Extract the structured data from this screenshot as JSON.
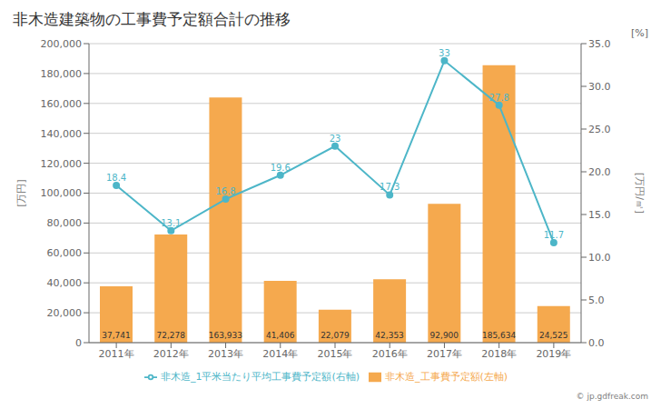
{
  "chart_data": {
    "type": "bar",
    "title": "非木造建築物の工事費予定額合計の推移",
    "categories": [
      "2011年",
      "2012年",
      "2013年",
      "2014年",
      "2015年",
      "2016年",
      "2017年",
      "2018年",
      "2019年"
    ],
    "series": [
      {
        "name": "非木造_工事費予定額(左軸)",
        "type": "bar",
        "color": "#f5a94e",
        "values": [
          37741,
          72278,
          163933,
          41406,
          22079,
          42353,
          92900,
          185634,
          24525
        ],
        "value_labels": [
          "37,741",
          "72,278",
          "163,933",
          "41,406",
          "22,079",
          "42,353",
          "92,900",
          "185,634",
          "24,525"
        ]
      },
      {
        "name": "非木造_1平米当たり平均工事費予定額(右軸)",
        "type": "line",
        "axis": "y2",
        "color": "#4db6c8",
        "marker": "circle",
        "values": [
          18.4,
          13.1,
          16.8,
          19.6,
          23,
          17.3,
          33,
          27.8,
          11.7
        ]
      }
    ],
    "ylabel": "[万円]",
    "y2label": "[万円/㎡]",
    "ylim": [
      0,
      200000
    ],
    "yticks": [
      0,
      {
        "value": 20000,
        "label": "20,000"
      },
      {
        "value": 40000,
        "label": "40,000"
      },
      {
        "value": 60000,
        "label": "60,000"
      },
      {
        "value": 80000,
        "label": "80,000"
      },
      {
        "value": 100000,
        "label": "100,000"
      },
      {
        "value": 120000,
        "label": "120,000"
      },
      {
        "value": 140000,
        "label": "140,000"
      },
      {
        "value": 160000,
        "label": "160,000"
      },
      {
        "value": 180000,
        "label": "180,000"
      },
      {
        "value": 200000,
        "label": "200,000"
      }
    ],
    "y2lim": [
      0,
      35.0
    ],
    "y2ticks": [
      {
        "value": 0,
        "label": "0.0"
      },
      {
        "value": 5,
        "label": "5.0"
      },
      {
        "value": 10,
        "label": "10.0"
      },
      {
        "value": 15,
        "label": "15.0"
      },
      {
        "value": 20,
        "label": "20.0"
      },
      {
        "value": 25,
        "label": "25.0"
      },
      {
        "value": 30,
        "label": "30.0"
      },
      {
        "value": 35,
        "label": "35.0"
      }
    ],
    "annotations": [
      "[%]",
      "© jp.gdfreak.com"
    ],
    "grid": true,
    "legend": "bottom",
    "data_labels": true
  }
}
